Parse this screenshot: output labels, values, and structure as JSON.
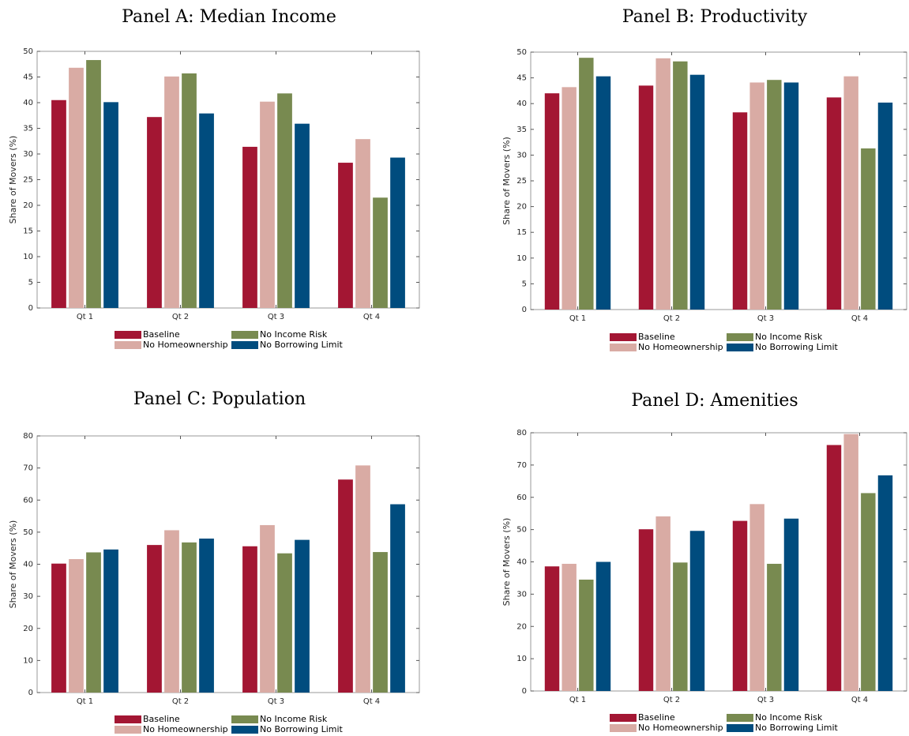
{
  "chart_data": [
    {
      "type": "bar",
      "title": "Panel A: Median Income",
      "ylabel": "Share of Movers (%)",
      "categories": [
        "Qt 1",
        "Qt 2",
        "Qt 3",
        "Qt 4"
      ],
      "series": [
        {
          "name": "Baseline",
          "color": "#a31633",
          "values": [
            40.5,
            37.2,
            31.4,
            28.3
          ]
        },
        {
          "name": "No Homeownership",
          "color": "#d9aba4",
          "values": [
            46.8,
            45.1,
            40.2,
            32.9
          ]
        },
        {
          "name": "No Income Risk",
          "color": "#788a50",
          "values": [
            48.3,
            45.7,
            41.8,
            21.5
          ]
        },
        {
          "name": "No Borrowing Limit",
          "color": "#004c7e",
          "values": [
            40.1,
            37.9,
            35.9,
            29.3
          ]
        }
      ],
      "ylim": [
        0,
        50
      ],
      "yticks": [
        0,
        5,
        10,
        15,
        20,
        25,
        30,
        35,
        40,
        45,
        50
      ]
    },
    {
      "type": "bar",
      "title": "Panel B: Productivity",
      "ylabel": "Share of Movers (%)",
      "categories": [
        "Qt 1",
        "Qt 2",
        "Qt 3",
        "Qt 4"
      ],
      "series": [
        {
          "name": "Baseline",
          "color": "#a31633",
          "values": [
            42.0,
            43.5,
            38.3,
            41.2
          ]
        },
        {
          "name": "No Homeownership",
          "color": "#d9aba4",
          "values": [
            43.2,
            48.8,
            44.1,
            45.3
          ]
        },
        {
          "name": "No Income Risk",
          "color": "#788a50",
          "values": [
            48.9,
            48.2,
            44.6,
            31.3
          ]
        },
        {
          "name": "No Borrowing Limit",
          "color": "#004c7e",
          "values": [
            45.3,
            45.6,
            44.1,
            40.2
          ]
        }
      ],
      "ylim": [
        0,
        50
      ],
      "yticks": [
        0,
        5,
        10,
        15,
        20,
        25,
        30,
        35,
        40,
        45,
        50
      ]
    },
    {
      "type": "bar",
      "title": "Panel C: Population",
      "ylabel": "Share of Movers (%)",
      "categories": [
        "Qt 1",
        "Qt 2",
        "Qt 3",
        "Qt 4"
      ],
      "series": [
        {
          "name": "Baseline",
          "color": "#a31633",
          "values": [
            40.2,
            46.0,
            45.6,
            66.4
          ]
        },
        {
          "name": "No Homeownership",
          "color": "#d9aba4",
          "values": [
            41.6,
            50.6,
            52.2,
            70.8
          ]
        },
        {
          "name": "No Income Risk",
          "color": "#788a50",
          "values": [
            43.7,
            46.8,
            43.4,
            43.8
          ]
        },
        {
          "name": "No Borrowing Limit",
          "color": "#004c7e",
          "values": [
            44.6,
            48.0,
            47.6,
            58.7
          ]
        }
      ],
      "ylim": [
        0,
        80
      ],
      "yticks": [
        0,
        10,
        20,
        30,
        40,
        50,
        60,
        70,
        80
      ]
    },
    {
      "type": "bar",
      "title": "Panel D: Amenities",
      "ylabel": "Share of Movers (%)",
      "categories": [
        "Qt 1",
        "Qt 2",
        "Qt 3",
        "Qt 4"
      ],
      "series": [
        {
          "name": "Baseline",
          "color": "#a31633",
          "values": [
            38.6,
            50.1,
            52.7,
            76.2
          ]
        },
        {
          "name": "No Homeownership",
          "color": "#d9aba4",
          "values": [
            39.4,
            54.1,
            57.9,
            79.6
          ]
        },
        {
          "name": "No Income Risk",
          "color": "#788a50",
          "values": [
            34.5,
            39.8,
            39.4,
            61.3
          ]
        },
        {
          "name": "No Borrowing Limit",
          "color": "#004c7e",
          "values": [
            40.0,
            49.6,
            53.4,
            66.8
          ]
        }
      ],
      "ylim": [
        0,
        80
      ],
      "yticks": [
        0,
        10,
        20,
        30,
        40,
        50,
        60,
        70,
        80
      ]
    }
  ]
}
